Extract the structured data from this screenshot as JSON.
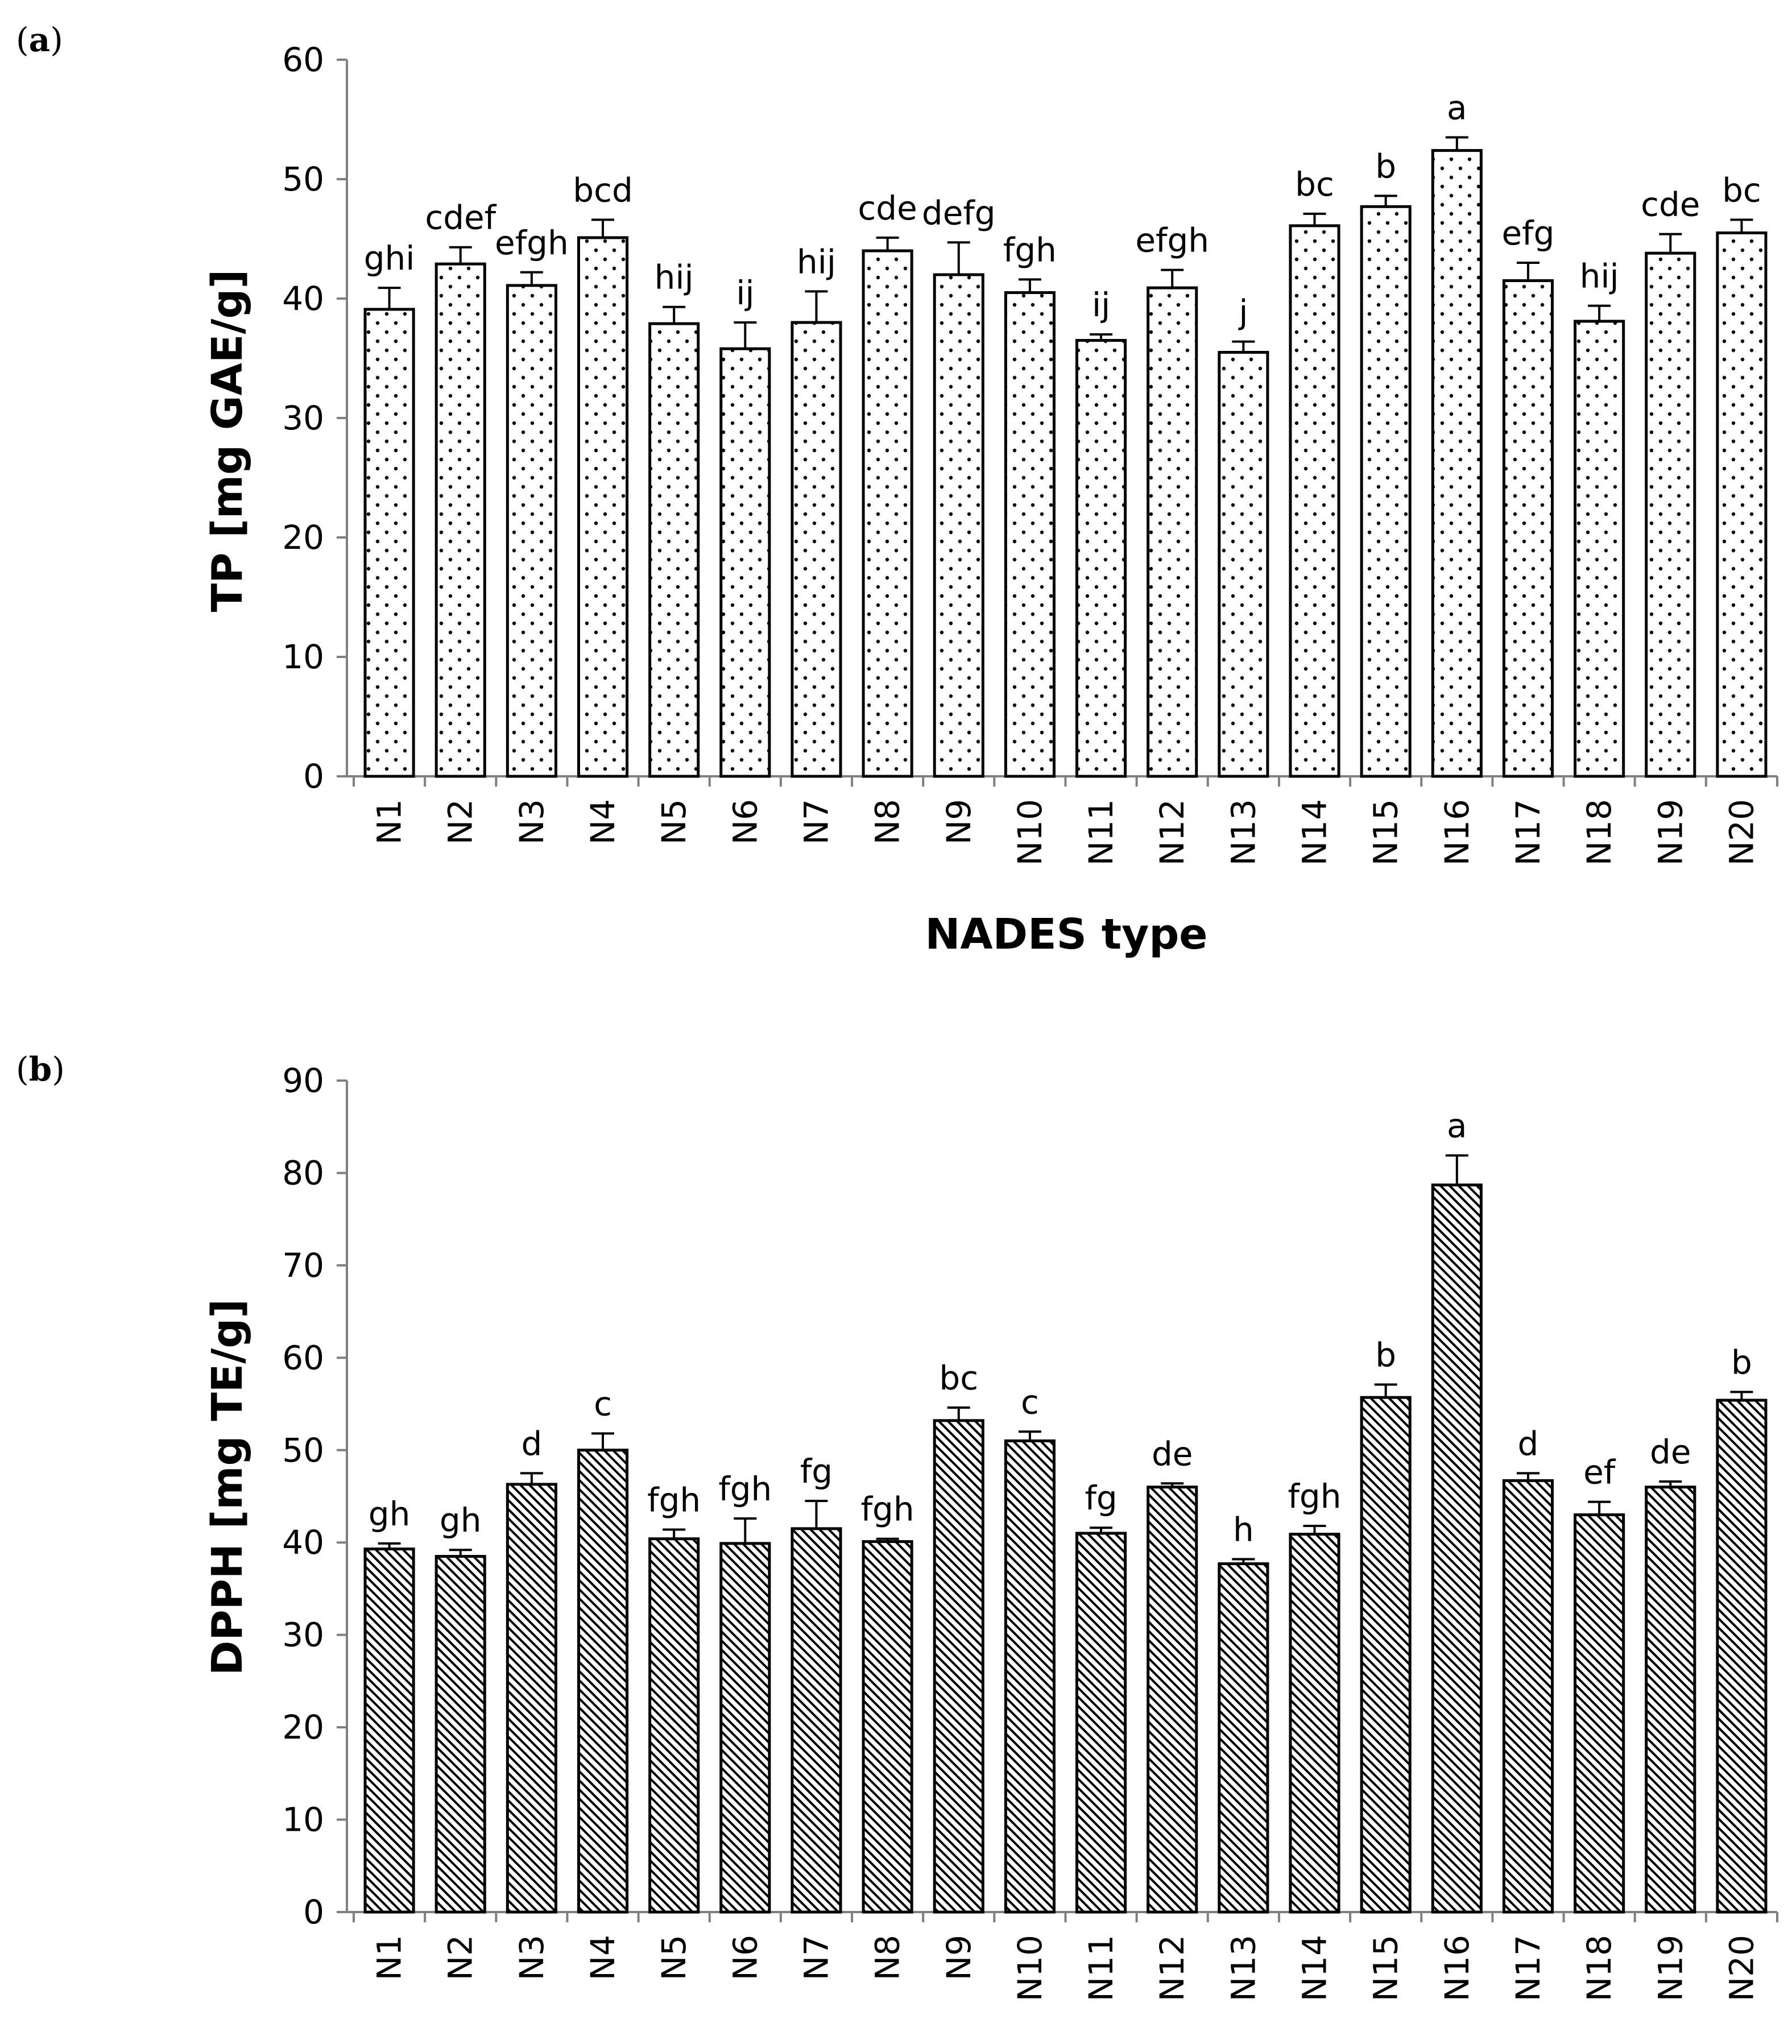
{
  "chart_data": [
    {
      "type": "bar",
      "panel_label_open": "(",
      "panel_label_letter": "a",
      "panel_label_close": ")",
      "pattern": "dots",
      "categories": [
        "N1",
        "N2",
        "N3",
        "N4",
        "N5",
        "N6",
        "N7",
        "N8",
        "N9",
        "N10",
        "N11",
        "N12",
        "N13",
        "N14",
        "N15",
        "N16",
        "N17",
        "N18",
        "N19",
        "N20"
      ],
      "values": [
        39.1,
        42.9,
        41.1,
        45.1,
        37.9,
        35.8,
        38.0,
        44.0,
        42.0,
        40.5,
        36.5,
        40.9,
        35.5,
        46.1,
        47.7,
        52.4,
        41.5,
        38.1,
        43.8,
        45.5
      ],
      "errors": [
        1.8,
        1.4,
        1.1,
        1.5,
        1.4,
        2.2,
        2.6,
        1.1,
        2.7,
        1.1,
        0.5,
        1.5,
        0.9,
        1.0,
        0.9,
        1.1,
        1.5,
        1.3,
        1.6,
        1.1
      ],
      "letters": [
        "ghi",
        "cdef",
        "efgh",
        "bcd",
        "hij",
        "ij",
        "hij",
        "cde",
        "defg",
        "fgh",
        "ij",
        "efgh",
        "j",
        "bc",
        "b",
        "a",
        "efg",
        "hij",
        "cde",
        "bc"
      ],
      "ylabel": "TP [mg GAE/g]",
      "xlabel": "NADES type",
      "ylim": [
        0,
        60
      ],
      "yticks": [
        "0",
        "10",
        "20",
        "30",
        "40",
        "50",
        "60"
      ]
    },
    {
      "type": "bar",
      "panel_label_open": "(",
      "panel_label_letter": "b",
      "panel_label_close": ")",
      "pattern": "diagonal",
      "categories": [
        "N1",
        "N2",
        "N3",
        "N4",
        "N5",
        "N6",
        "N7",
        "N8",
        "N9",
        "N10",
        "N11",
        "N12",
        "N13",
        "N14",
        "N15",
        "N16",
        "N17",
        "N18",
        "N19",
        "N20"
      ],
      "values": [
        39.3,
        38.5,
        46.3,
        50.0,
        40.4,
        39.9,
        41.5,
        40.1,
        53.2,
        51.0,
        41.0,
        46.0,
        37.7,
        40.9,
        55.7,
        78.7,
        46.7,
        43.0,
        46.0,
        55.4
      ],
      "errors": [
        0.6,
        0.7,
        1.2,
        1.8,
        1.0,
        2.7,
        3.0,
        0.3,
        1.4,
        1.0,
        0.6,
        0.4,
        0.5,
        0.9,
        1.4,
        3.2,
        0.8,
        1.4,
        0.6,
        0.9
      ],
      "letters": [
        "gh",
        "gh",
        "d",
        "c",
        "fgh",
        "fgh",
        "fg",
        "fgh",
        "bc",
        "c",
        "fg",
        "de",
        "h",
        "fgh",
        "b",
        "a",
        "d",
        "ef",
        "de",
        "b"
      ],
      "ylabel": "DPPH [mg TE/g]",
      "xlabel": "",
      "ylim": [
        0,
        90
      ],
      "yticks": [
        "0",
        "10",
        "20",
        "30",
        "40",
        "50",
        "60",
        "70",
        "80",
        "90"
      ]
    }
  ]
}
